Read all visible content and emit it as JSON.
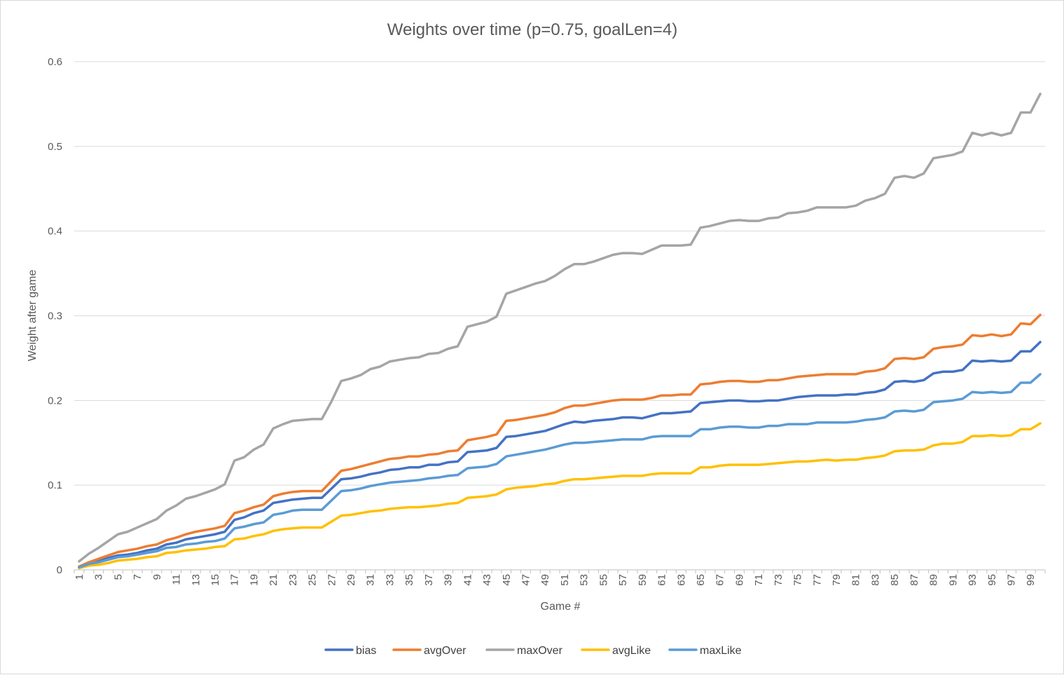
{
  "chart_data": {
    "type": "line",
    "title": "Weights over time (p=0.75, goalLen=4)",
    "xlabel": "Game #",
    "ylabel": "Weight after game",
    "ylim": [
      0,
      0.6
    ],
    "yticks": [
      0,
      0.1,
      0.2,
      0.3,
      0.4,
      0.5,
      0.6
    ],
    "ytick_labels": [
      "0",
      "0.1",
      "0.2",
      "0.3",
      "0.4",
      "0.5",
      "0.6"
    ],
    "x": [
      1,
      2,
      3,
      4,
      5,
      6,
      7,
      8,
      9,
      10,
      11,
      12,
      13,
      14,
      15,
      16,
      17,
      18,
      19,
      20,
      21,
      22,
      23,
      24,
      25,
      26,
      27,
      28,
      29,
      30,
      31,
      32,
      33,
      34,
      35,
      36,
      37,
      38,
      39,
      40,
      41,
      42,
      43,
      44,
      45,
      46,
      47,
      48,
      49,
      50,
      51,
      52,
      53,
      54,
      55,
      56,
      57,
      58,
      59,
      60,
      61,
      62,
      63,
      64,
      65,
      66,
      67,
      68,
      69,
      70,
      71,
      72,
      73,
      74,
      75,
      76,
      77,
      78,
      79,
      80,
      81,
      82,
      83,
      84,
      85,
      86,
      87,
      88,
      89,
      90,
      91,
      92,
      93,
      94,
      95,
      96,
      97,
      98,
      99,
      100
    ],
    "xtick_labels": [
      "1",
      "3",
      "5",
      "7",
      "9",
      "11",
      "13",
      "15",
      "17",
      "19",
      "21",
      "23",
      "25",
      "27",
      "29",
      "31",
      "33",
      "35",
      "37",
      "39",
      "41",
      "43",
      "45",
      "47",
      "49",
      "51",
      "53",
      "55",
      "57",
      "59",
      "61",
      "63",
      "65",
      "67",
      "69",
      "71",
      "73",
      "75",
      "77",
      "79",
      "81",
      "83",
      "85",
      "87",
      "89",
      "91",
      "93",
      "95",
      "97",
      "99"
    ],
    "grid": true,
    "legend_position": "bottom",
    "series": [
      {
        "name": "bias",
        "color": "#4472C4",
        "values": [
          0.003,
          0.008,
          0.011,
          0.014,
          0.017,
          0.018,
          0.02,
          0.023,
          0.025,
          0.03,
          0.032,
          0.036,
          0.038,
          0.04,
          0.042,
          0.045,
          0.059,
          0.062,
          0.067,
          0.07,
          0.079,
          0.081,
          0.083,
          0.084,
          0.085,
          0.085,
          0.096,
          0.107,
          0.108,
          0.11,
          0.113,
          0.115,
          0.118,
          0.119,
          0.121,
          0.121,
          0.124,
          0.124,
          0.127,
          0.128,
          0.139,
          0.14,
          0.141,
          0.144,
          0.157,
          0.158,
          0.16,
          0.162,
          0.164,
          0.168,
          0.172,
          0.175,
          0.174,
          0.176,
          0.177,
          0.178,
          0.18,
          0.18,
          0.179,
          0.182,
          0.185,
          0.185,
          0.186,
          0.187,
          0.197,
          0.198,
          0.199,
          0.2,
          0.2,
          0.199,
          0.199,
          0.2,
          0.2,
          0.202,
          0.204,
          0.205,
          0.206,
          0.206,
          0.206,
          0.207,
          0.207,
          0.209,
          0.21,
          0.213,
          0.222,
          0.223,
          0.222,
          0.224,
          0.232,
          0.234,
          0.234,
          0.236,
          0.247,
          0.246,
          0.247,
          0.246,
          0.247,
          0.258,
          0.258,
          0.269
        ]
      },
      {
        "name": "avgOver",
        "color": "#ED7D31",
        "values": [
          0.004,
          0.009,
          0.013,
          0.017,
          0.021,
          0.023,
          0.025,
          0.028,
          0.03,
          0.035,
          0.038,
          0.042,
          0.045,
          0.047,
          0.049,
          0.052,
          0.067,
          0.07,
          0.074,
          0.077,
          0.087,
          0.09,
          0.092,
          0.093,
          0.093,
          0.093,
          0.105,
          0.117,
          0.119,
          0.122,
          0.125,
          0.128,
          0.131,
          0.132,
          0.134,
          0.134,
          0.136,
          0.137,
          0.14,
          0.141,
          0.153,
          0.155,
          0.157,
          0.16,
          0.176,
          0.177,
          0.179,
          0.181,
          0.183,
          0.186,
          0.191,
          0.194,
          0.194,
          0.196,
          0.198,
          0.2,
          0.201,
          0.201,
          0.201,
          0.203,
          0.206,
          0.206,
          0.207,
          0.207,
          0.219,
          0.22,
          0.222,
          0.223,
          0.223,
          0.222,
          0.222,
          0.224,
          0.224,
          0.226,
          0.228,
          0.229,
          0.23,
          0.231,
          0.231,
          0.231,
          0.231,
          0.234,
          0.235,
          0.238,
          0.249,
          0.25,
          0.249,
          0.251,
          0.261,
          0.263,
          0.264,
          0.266,
          0.277,
          0.276,
          0.278,
          0.276,
          0.278,
          0.291,
          0.29,
          0.301
        ]
      },
      {
        "name": "maxOver",
        "color": "#A5A5A5",
        "values": [
          0.01,
          0.019,
          0.026,
          0.034,
          0.042,
          0.045,
          0.05,
          0.055,
          0.06,
          0.07,
          0.076,
          0.084,
          0.087,
          0.091,
          0.095,
          0.101,
          0.129,
          0.133,
          0.142,
          0.148,
          0.167,
          0.172,
          0.176,
          0.177,
          0.178,
          0.178,
          0.199,
          0.223,
          0.226,
          0.23,
          0.237,
          0.24,
          0.246,
          0.248,
          0.25,
          0.251,
          0.255,
          0.256,
          0.261,
          0.264,
          0.287,
          0.29,
          0.293,
          0.299,
          0.326,
          0.33,
          0.334,
          0.338,
          0.341,
          0.347,
          0.355,
          0.361,
          0.361,
          0.364,
          0.368,
          0.372,
          0.374,
          0.374,
          0.373,
          0.378,
          0.383,
          0.383,
          0.383,
          0.384,
          0.404,
          0.406,
          0.409,
          0.412,
          0.413,
          0.412,
          0.412,
          0.415,
          0.416,
          0.421,
          0.422,
          0.424,
          0.428,
          0.428,
          0.428,
          0.428,
          0.43,
          0.436,
          0.439,
          0.444,
          0.463,
          0.465,
          0.463,
          0.468,
          0.486,
          0.488,
          0.49,
          0.494,
          0.516,
          0.513,
          0.516,
          0.513,
          0.516,
          0.54,
          0.54,
          0.562
        ]
      },
      {
        "name": "avgLike",
        "color": "#FFC000",
        "values": [
          0.002,
          0.005,
          0.006,
          0.008,
          0.011,
          0.012,
          0.013,
          0.015,
          0.016,
          0.02,
          0.021,
          0.023,
          0.024,
          0.025,
          0.027,
          0.028,
          0.036,
          0.037,
          0.04,
          0.042,
          0.046,
          0.048,
          0.049,
          0.05,
          0.05,
          0.05,
          0.057,
          0.064,
          0.065,
          0.067,
          0.069,
          0.07,
          0.072,
          0.073,
          0.074,
          0.074,
          0.075,
          0.076,
          0.078,
          0.079,
          0.085,
          0.086,
          0.087,
          0.089,
          0.095,
          0.097,
          0.098,
          0.099,
          0.101,
          0.102,
          0.105,
          0.107,
          0.107,
          0.108,
          0.109,
          0.11,
          0.111,
          0.111,
          0.111,
          0.113,
          0.114,
          0.114,
          0.114,
          0.114,
          0.121,
          0.121,
          0.123,
          0.124,
          0.124,
          0.124,
          0.124,
          0.125,
          0.126,
          0.127,
          0.128,
          0.128,
          0.129,
          0.13,
          0.129,
          0.13,
          0.13,
          0.132,
          0.133,
          0.135,
          0.14,
          0.141,
          0.141,
          0.142,
          0.147,
          0.149,
          0.149,
          0.151,
          0.158,
          0.158,
          0.159,
          0.158,
          0.159,
          0.166,
          0.166,
          0.173
        ]
      },
      {
        "name": "maxLike",
        "color": "#5B9BD5",
        "values": [
          0.003,
          0.007,
          0.009,
          0.012,
          0.015,
          0.016,
          0.018,
          0.02,
          0.022,
          0.026,
          0.027,
          0.03,
          0.031,
          0.033,
          0.034,
          0.037,
          0.049,
          0.051,
          0.054,
          0.056,
          0.065,
          0.067,
          0.07,
          0.071,
          0.071,
          0.071,
          0.082,
          0.093,
          0.094,
          0.096,
          0.099,
          0.101,
          0.103,
          0.104,
          0.105,
          0.106,
          0.108,
          0.109,
          0.111,
          0.112,
          0.12,
          0.121,
          0.122,
          0.125,
          0.134,
          0.136,
          0.138,
          0.14,
          0.142,
          0.145,
          0.148,
          0.15,
          0.15,
          0.151,
          0.152,
          0.153,
          0.154,
          0.154,
          0.154,
          0.157,
          0.158,
          0.158,
          0.158,
          0.158,
          0.166,
          0.166,
          0.168,
          0.169,
          0.169,
          0.168,
          0.168,
          0.17,
          0.17,
          0.172,
          0.172,
          0.172,
          0.174,
          0.174,
          0.174,
          0.174,
          0.175,
          0.177,
          0.178,
          0.18,
          0.187,
          0.188,
          0.187,
          0.189,
          0.198,
          0.199,
          0.2,
          0.202,
          0.21,
          0.209,
          0.21,
          0.209,
          0.21,
          0.221,
          0.221,
          0.231
        ]
      }
    ]
  }
}
